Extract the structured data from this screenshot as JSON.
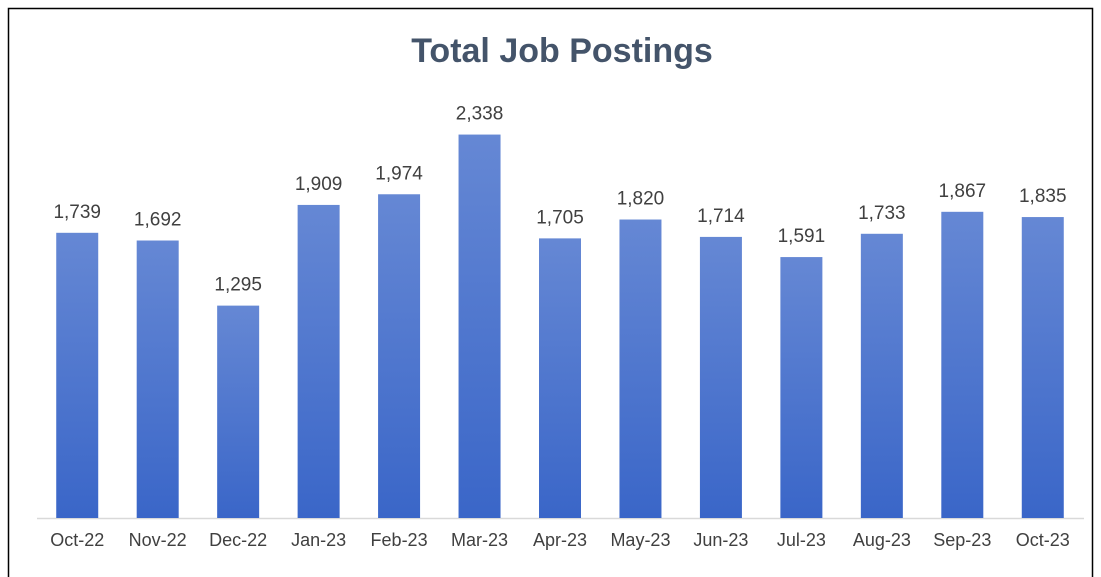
{
  "chart_data": {
    "type": "bar",
    "title": "Total Job Postings",
    "categories": [
      "Oct-22",
      "Nov-22",
      "Dec-22",
      "Jan-23",
      "Feb-23",
      "Mar-23",
      "Apr-23",
      "May-23",
      "Jun-23",
      "Jul-23",
      "Aug-23",
      "Sep-23",
      "Oct-23"
    ],
    "values": [
      1739,
      1692,
      1295,
      1909,
      1974,
      2338,
      1705,
      1820,
      1714,
      1591,
      1733,
      1867,
      1835
    ],
    "value_labels": [
      "1,739",
      "1,692",
      "1,295",
      "1,909",
      "1,974",
      "2,338",
      "1,705",
      "1,820",
      "1,714",
      "1,591",
      "1,733",
      "1,867",
      "1,835"
    ],
    "color": "#3a66c8",
    "ylim": [
      0,
      2500
    ]
  }
}
